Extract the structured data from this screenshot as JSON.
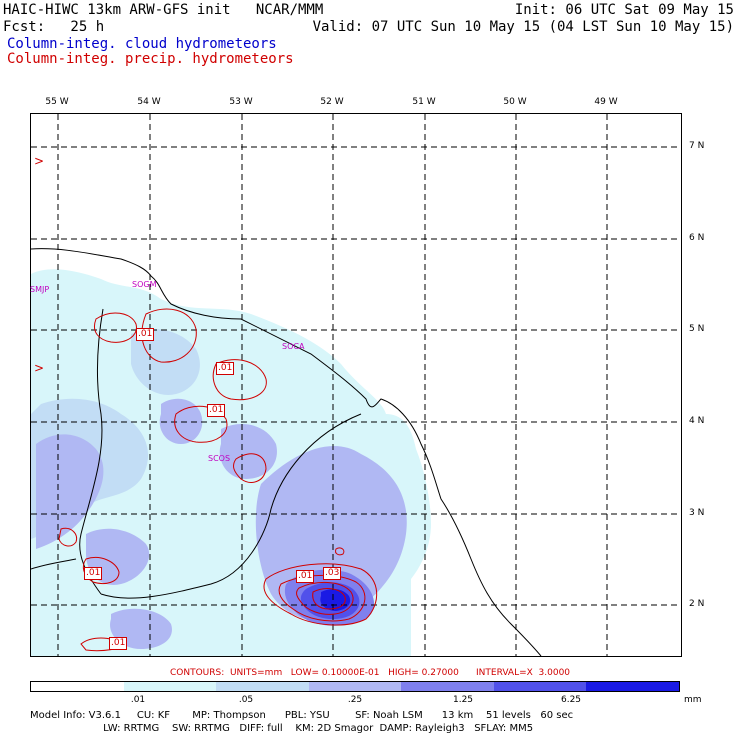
{
  "header": {
    "title": "HAIC-HIWC 13km ARW-GFS init   NCAR/MMM",
    "init": "Init: 06 UTC Sat 09 May 15",
    "fcst": "Fcst:   25 h",
    "valid": "Valid: 07 UTC Sun 10 May 15 (04 LST Sun 10 May 15)",
    "field_cloud": "Column-integ. cloud hydrometeors",
    "field_precip": "Column-integ. precip. hydrometeors"
  },
  "colors": {
    "cloud_text": "#0000cc",
    "precip_text": "#d00000",
    "station_text": "#c000c0",
    "shade_1": "#d8f6fa",
    "shade_2": "#c2ddf5",
    "shade_3": "#b0b8f3",
    "shade_4": "#7f80ee",
    "shade_5": "#5151ea",
    "shade_6": "#1a1ae4"
  },
  "longitudes": [
    "55 W",
    "54 W",
    "53 W",
    "52 W",
    "51 W",
    "50 W",
    "49 W"
  ],
  "latitudes": [
    "7 N",
    "6 N",
    "5 N",
    "4 N",
    "3 N",
    "2 N"
  ],
  "stations": [
    "SMJP",
    "SOGM",
    "SOCA",
    "SCOS"
  ],
  "contour_labels": [
    ".01",
    ".01",
    ".01",
    ".01",
    ".01",
    ".03",
    ".01"
  ],
  "contour_info": "CONTOURS:  UNITS=mm   LOW= 0.10000E-01   HIGH= 0.27000      INTERVAL=X  3.0000",
  "colorbar": {
    "labels": [
      ".01",
      ".05",
      ".25",
      "1.25",
      "6.25"
    ],
    "units": "mm"
  },
  "footer": {
    "line1": "Model Info: V3.6.1     CU: KF       MP: Thompson      PBL: YSU        SF: Noah LSM      13 km    51 levels   60 sec",
    "line2": "                       LW: RRTMG    SW: RRTMG   DIFF: full    KM: 2D Smagor  DAMP: Rayleigh3   SFLAY: MM5"
  }
}
